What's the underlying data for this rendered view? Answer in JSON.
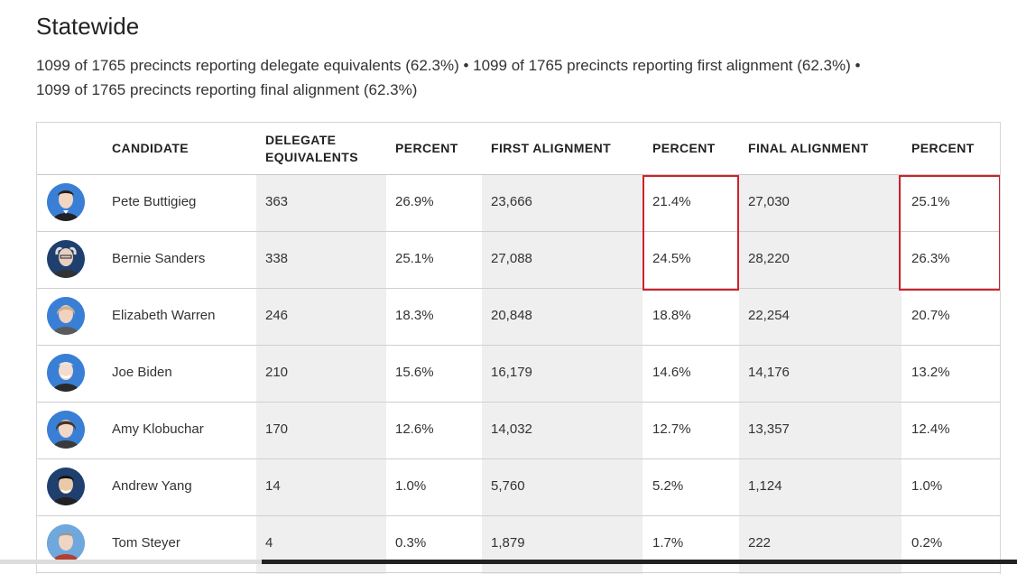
{
  "page": {
    "title": "Statewide",
    "subtitle_line1": "1099 of 1765 precincts reporting delegate equivalents (62.3%) • 1099 of 1765 precincts reporting first alignment (62.3%) •",
    "subtitle_line2": "1099 of 1765 precincts reporting final alignment (62.3%)"
  },
  "table": {
    "headers": {
      "candidate": "CANDIDATE",
      "delegate_line1": "DELEGATE",
      "delegate_line2": "EQUIVALENTS",
      "percent1": "PERCENT",
      "first_alignment": "FIRST ALIGNMENT",
      "percent2": "PERCENT",
      "final_alignment": "FINAL ALIGNMENT",
      "percent3": "PERCENT"
    },
    "rows": [
      {
        "name": "Pete Buttigieg",
        "delegates": "363",
        "pct1": "26.9%",
        "first": "23,666",
        "pct2": "21.4%",
        "final": "27,030",
        "pct3": "25.1%"
      },
      {
        "name": "Bernie Sanders",
        "delegates": "338",
        "pct1": "25.1%",
        "first": "27,088",
        "pct2": "24.5%",
        "final": "28,220",
        "pct3": "26.3%"
      },
      {
        "name": "Elizabeth Warren",
        "delegates": "246",
        "pct1": "18.3%",
        "first": "20,848",
        "pct2": "18.8%",
        "final": "22,254",
        "pct3": "20.7%"
      },
      {
        "name": "Joe Biden",
        "delegates": "210",
        "pct1": "15.6%",
        "first": "16,179",
        "pct2": "14.6%",
        "final": "14,176",
        "pct3": "13.2%"
      },
      {
        "name": "Amy Klobuchar",
        "delegates": "170",
        "pct1": "12.6%",
        "first": "14,032",
        "pct2": "12.7%",
        "final": "13,357",
        "pct3": "12.4%"
      },
      {
        "name": "Andrew Yang",
        "delegates": "14",
        "pct1": "1.0%",
        "first": "5,760",
        "pct2": "5.2%",
        "final": "1,124",
        "pct3": "1.0%"
      },
      {
        "name": "Tom Steyer",
        "delegates": "4",
        "pct1": "0.3%",
        "first": "1,879",
        "pct2": "1.7%",
        "final": "222",
        "pct3": "0.2%"
      }
    ]
  },
  "colors": {
    "highlight": "#d0212b",
    "avatar_background": "#3a7fd6",
    "shaded_column": "#efefef"
  }
}
